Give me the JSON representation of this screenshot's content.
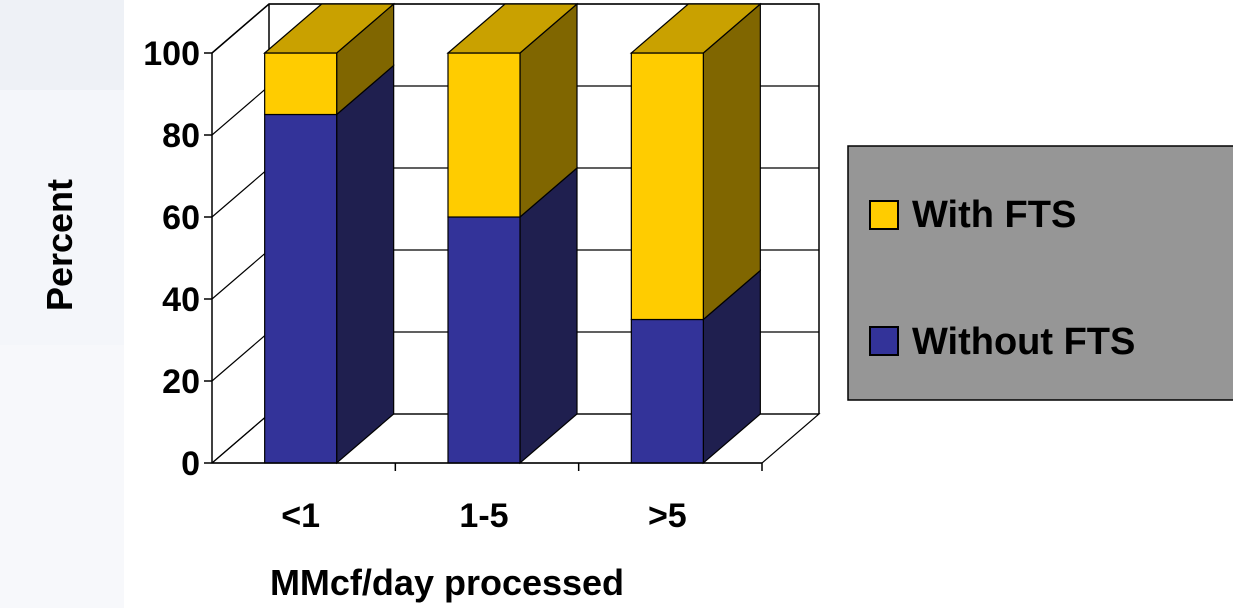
{
  "chart_data": {
    "type": "bar",
    "stacked": true,
    "three_d": true,
    "categories": [
      "<1",
      "1-5",
      ">5"
    ],
    "series": [
      {
        "name": "Without FTS",
        "values": [
          85,
          60,
          35
        ]
      },
      {
        "name": "With FTS",
        "values": [
          17,
          40,
          65
        ]
      }
    ],
    "ylabel": "Percent",
    "xlabel": "MMcf/day processed",
    "ylim": [
      0,
      100
    ],
    "yticks": [
      0,
      20,
      40,
      60,
      80,
      100
    ],
    "grid": true,
    "legend_position": "right",
    "colors": {
      "without_fts_front": "#333399",
      "without_fts_side": "#1f1f4f",
      "without_fts_top": "#262673",
      "with_fts_front": "#ffcc00",
      "with_fts_side": "#806600",
      "with_fts_top": "#c9a100",
      "legend_background": "#969696",
      "left_panel": "#f4f6fa"
    }
  }
}
